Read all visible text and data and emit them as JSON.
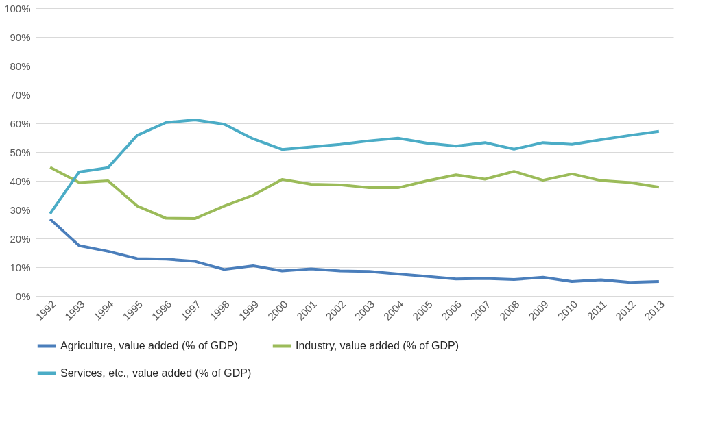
{
  "chart_data": {
    "type": "line",
    "categories": [
      "1992",
      "1993",
      "1994",
      "1995",
      "1996",
      "1997",
      "1998",
      "1999",
      "2000",
      "2001",
      "2002",
      "2003",
      "2004",
      "2005",
      "2006",
      "2007",
      "2008",
      "2009",
      "2010",
      "2011",
      "2012",
      "2013"
    ],
    "series": [
      {
        "name": "Agriculture, value added (% of GDP)",
        "color": "#4a7ebb",
        "values": [
          26.7,
          17.5,
          15.5,
          13,
          12.8,
          12,
          9.2,
          10.5,
          8.7,
          9.4,
          8.7,
          8.5,
          7.6,
          6.8,
          5.9,
          6.1,
          5.7,
          6.5,
          5,
          5.6,
          4.7,
          5
        ]
      },
      {
        "name": "Industry, value added (% of GDP)",
        "color": "#9bbb59",
        "values": [
          44.7,
          39.4,
          40,
          31.3,
          27,
          26.9,
          31.2,
          35,
          40.5,
          38.8,
          38.6,
          37.6,
          37.6,
          40,
          42.1,
          40.6,
          43.3,
          40.2,
          42.4,
          40.1,
          39.4,
          37.8
        ]
      },
      {
        "name": "Services, etc., value added (% of GDP)",
        "color": "#4bacc6",
        "values": [
          28.6,
          43.1,
          44.6,
          55.8,
          60.3,
          61.2,
          59.7,
          54.6,
          50.9,
          51.8,
          52.7,
          53.9,
          54.8,
          53.1,
          52.1,
          53.3,
          51,
          53.3,
          52.7,
          54.3,
          55.8,
          57.2
        ]
      }
    ],
    "ylim": [
      0,
      100
    ],
    "yticks": [
      {
        "value": 0,
        "label": "0%"
      },
      {
        "value": 10,
        "label": "10%"
      },
      {
        "value": 20,
        "label": "20%"
      },
      {
        "value": 30,
        "label": "30%"
      },
      {
        "value": 40,
        "label": "40%"
      },
      {
        "value": 50,
        "label": "50%"
      },
      {
        "value": 60,
        "label": "60%"
      },
      {
        "value": 70,
        "label": "70%"
      },
      {
        "value": 80,
        "label": "80%"
      },
      {
        "value": 90,
        "label": "90%"
      },
      {
        "value": 100,
        "label": "100%"
      }
    ],
    "grid": "y",
    "legend": "bottom",
    "marker": "none",
    "line_style": "solid"
  }
}
